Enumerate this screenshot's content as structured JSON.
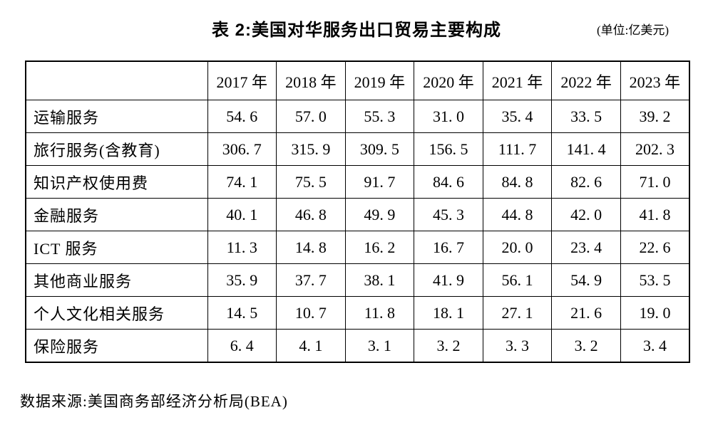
{
  "title": "表 2:美国对华服务出口贸易主要构成",
  "unit_note": "(单位:亿美元)",
  "source_note": "数据来源:美国商务部经济分析局(BEA)",
  "chart_data": {
    "type": "table",
    "title": "表 2:美国对华服务出口贸易主要构成",
    "unit": "亿美元",
    "columns": [
      "2017 年",
      "2018 年",
      "2019 年",
      "2020 年",
      "2021 年",
      "2022 年",
      "2023 年"
    ],
    "rows": [
      {
        "label": "运输服务",
        "values": [
          54.6,
          57.0,
          55.3,
          31.0,
          35.4,
          33.5,
          39.2
        ]
      },
      {
        "label": "旅行服务(含教育)",
        "values": [
          306.7,
          315.9,
          309.5,
          156.5,
          111.7,
          141.4,
          202.3
        ]
      },
      {
        "label": "知识产权使用费",
        "values": [
          74.1,
          75.5,
          91.7,
          84.6,
          84.8,
          82.6,
          71.0
        ]
      },
      {
        "label": "金融服务",
        "values": [
          40.1,
          46.8,
          49.9,
          45.3,
          44.8,
          42.0,
          41.8
        ]
      },
      {
        "label": "ICT 服务",
        "values": [
          11.3,
          14.8,
          16.2,
          16.7,
          20.0,
          23.4,
          22.6
        ]
      },
      {
        "label": "其他商业服务",
        "values": [
          35.9,
          37.7,
          38.1,
          41.9,
          56.1,
          54.9,
          53.5
        ]
      },
      {
        "label": "个人文化相关服务",
        "values": [
          14.5,
          10.7,
          11.8,
          18.1,
          27.1,
          21.6,
          19.0
        ]
      },
      {
        "label": "保险服务",
        "values": [
          6.4,
          4.1,
          3.1,
          3.2,
          3.3,
          3.2,
          3.4
        ]
      }
    ],
    "source": "美国商务部经济分析局(BEA)"
  }
}
